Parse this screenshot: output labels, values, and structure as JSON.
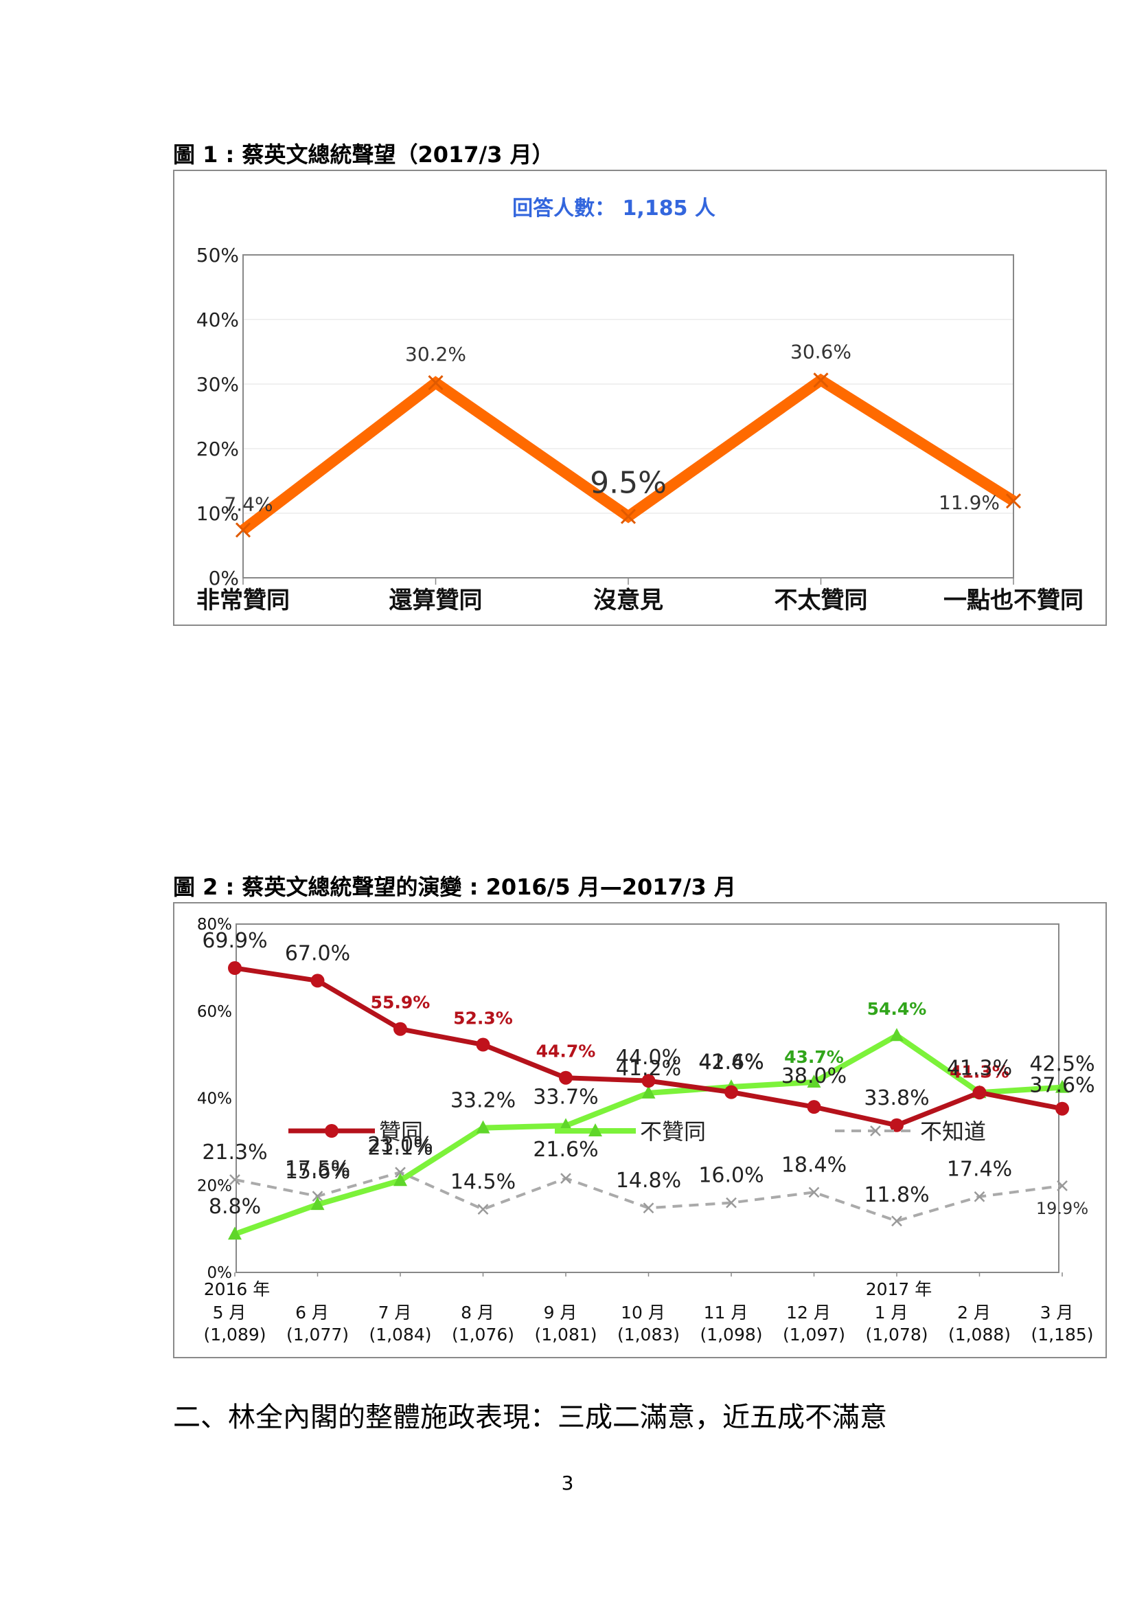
{
  "figure1": {
    "caption": "圖 1 : 蔡英文總統聲望（2017/3 月）"
  },
  "figure2": {
    "caption": "圖 2 : 蔡英文總統聲望的演變 : 2016/5 月—2017/3 月"
  },
  "section_heading": "二、林全內閣的整體施政表現：三成二滿意，近五成不滿意",
  "page_number": "3",
  "chart_data": [
    {
      "type": "line",
      "subtitle": "回答人數： 1,185 人",
      "categories": [
        "非常贊同",
        "還算贊同",
        "沒意見",
        "不太贊同",
        "一點也不贊同"
      ],
      "values": [
        7.4,
        30.2,
        9.5,
        30.6,
        11.9
      ],
      "data_labels": [
        "7.4%",
        "30.2%",
        "9.5%",
        "30.6%",
        "11.9%"
      ],
      "ylim": [
        0,
        50
      ],
      "yticks": [
        "0%",
        "10%",
        "20%",
        "30%",
        "40%",
        "50%"
      ],
      "grid": true,
      "colors": {
        "line": "#ff6a00",
        "marker": "#e05a00",
        "subtitle": "#3366dd"
      }
    },
    {
      "type": "line",
      "categories": [
        [
          "2016 年",
          "5 月",
          "(1,089)"
        ],
        [
          "",
          "6 月",
          "(1,077)"
        ],
        [
          "",
          "7 月",
          "(1,084)"
        ],
        [
          "",
          "8 月",
          "(1,076)"
        ],
        [
          "",
          "9 月",
          "(1,081)"
        ],
        [
          "",
          "10 月",
          "(1,083)"
        ],
        [
          "",
          "11 月",
          "(1,098)"
        ],
        [
          "",
          "12 月",
          "(1,097)"
        ],
        [
          "2017 年",
          "1 月",
          "(1,078)"
        ],
        [
          "",
          "2 月",
          "(1,088)"
        ],
        [
          "",
          "3 月",
          "(1,185)"
        ]
      ],
      "ylim": [
        0,
        80
      ],
      "yticks": [
        "0%",
        "20%",
        "40%",
        "60%",
        "80%"
      ],
      "legend_placement": "middle",
      "series": [
        {
          "name": "贊同",
          "values": [
            69.9,
            67.0,
            55.9,
            52.3,
            44.7,
            44.0,
            41.4,
            38.0,
            33.8,
            41.3,
            37.6
          ],
          "labels": [
            "69.9%",
            "67.0%",
            "55.9%",
            "52.3%",
            "44.7%",
            "44.0%",
            "41.4%",
            "38.0%",
            "33.8%",
            "41.3%",
            "37.6%"
          ],
          "color": "#b5121b"
        },
        {
          "name": "不贊同",
          "values": [
            8.8,
            15.6,
            21.1,
            33.2,
            33.7,
            41.2,
            42.6,
            43.7,
            54.4,
            41.3,
            42.5
          ],
          "labels": [
            "8.8%",
            "15.6%",
            "21.1%",
            "33.2%",
            "33.7%",
            "41.2%",
            "42.6%",
            "43.7%",
            "54.4%",
            "41.3%",
            "42.5%"
          ],
          "color": "#7cf23a"
        },
        {
          "name": "不知道",
          "values": [
            21.3,
            17.5,
            23.0,
            14.5,
            21.6,
            14.8,
            16.0,
            18.4,
            11.8,
            17.4,
            19.9
          ],
          "labels": [
            "21.3%",
            "17.5%",
            "23.0%",
            "14.5%",
            "21.6%",
            "14.8%",
            "16.0%",
            "18.4%",
            "11.8%",
            "17.4%",
            "19.9%"
          ],
          "color": "#aaaaaa"
        }
      ]
    }
  ]
}
